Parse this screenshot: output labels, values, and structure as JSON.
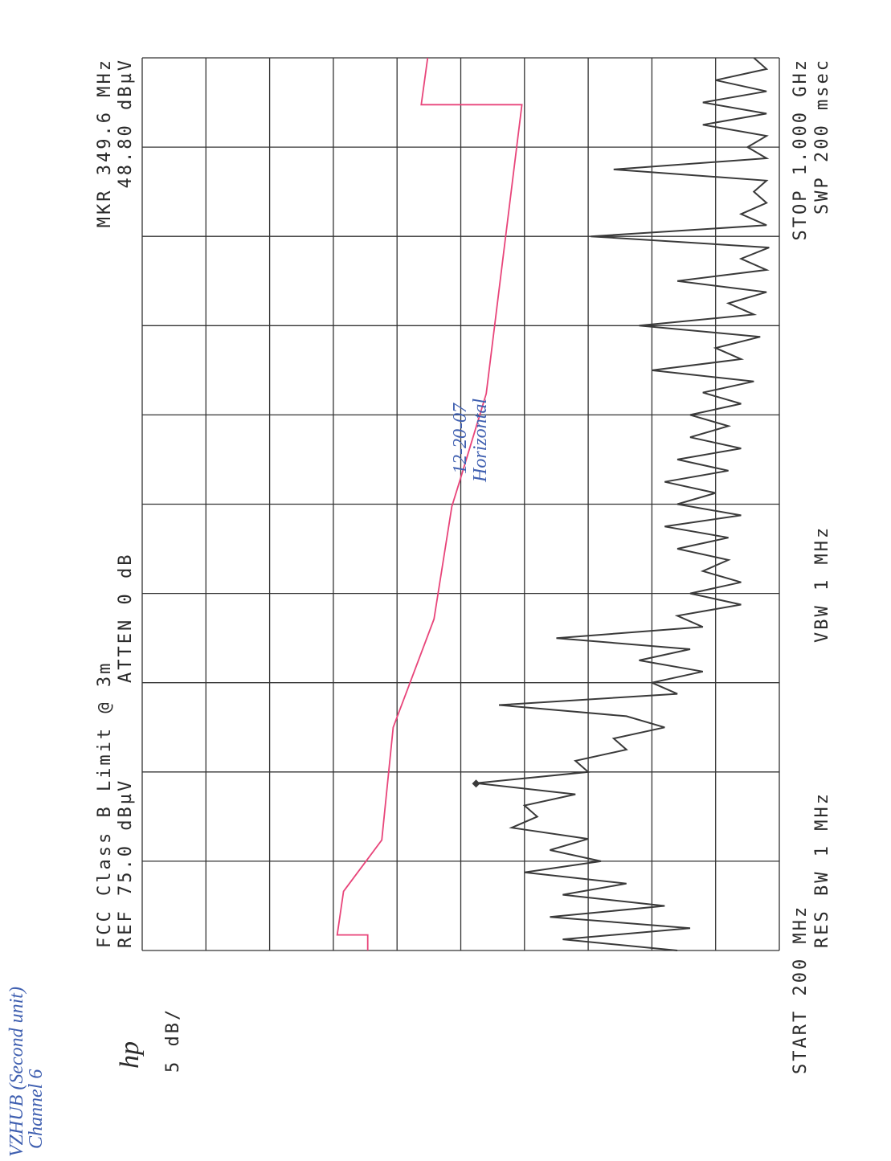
{
  "chart_data": {
    "type": "line",
    "title": "FCC Class B Limit @ 3m",
    "reference": "REF 75.0 dBµV",
    "attenuation": "ATTEN 0 dB",
    "scale": "5 dB/",
    "logo": "hp",
    "marker_label": "MKR 349.6 MHz",
    "marker_value_label": "48.80 dBµV",
    "marker": {
      "x": 349.6,
      "y": 48.8
    },
    "start_label": "START 200 MHz",
    "stop_label": "STOP 1.000 GHz",
    "rbw": "RES BW 1 MHz",
    "vbw": "VBW 1 MHz",
    "sweep": "SWP 200 msec",
    "handwritten": [
      "VZHUB (Second unit)",
      "Channel 6",
      "12-20-07",
      "Horizontal"
    ],
    "xlim": [
      200,
      1000
    ],
    "ylim": [
      25,
      75
    ],
    "xticks": [
      200,
      280,
      360,
      440,
      520,
      600,
      680,
      760,
      840,
      920,
      1000
    ],
    "yticks": [
      25,
      30,
      35,
      40,
      45,
      50,
      55,
      60,
      65,
      70,
      75
    ],
    "grid": true,
    "series": [
      {
        "color": "#3a3a3a",
        "x": [
          200,
          210,
          220,
          230,
          240,
          250,
          260,
          270,
          280,
          290,
          300,
          310,
          320,
          330,
          340,
          350,
          360,
          370,
          380,
          390,
          400,
          410,
          420,
          430,
          440,
          450,
          460,
          470,
          480,
          490,
          500,
          510,
          520,
          530,
          540,
          550,
          560,
          570,
          580,
          590,
          600,
          610,
          620,
          630,
          640,
          650,
          660,
          670,
          680,
          690,
          700,
          710,
          720,
          730,
          740,
          750,
          760,
          770,
          780,
          790,
          800,
          810,
          820,
          830,
          840,
          850,
          860,
          870,
          880,
          890,
          900,
          910,
          920,
          930,
          940,
          950,
          960,
          970,
          980,
          990,
          1000
        ],
        "values": [
          33,
          42,
          32,
          43,
          34,
          42,
          37,
          45,
          39,
          43,
          40,
          46,
          44,
          45,
          41,
          48.8,
          40,
          41,
          37,
          38,
          34,
          37,
          47,
          33,
          35,
          31,
          36,
          32,
          42.5,
          31,
          33,
          28,
          32,
          28,
          31,
          29,
          33,
          29,
          34,
          28,
          33,
          30,
          34,
          29,
          33,
          28,
          32,
          29,
          32,
          28,
          31,
          27,
          35,
          28,
          30,
          26.5,
          36,
          27,
          29,
          26,
          33,
          26,
          28,
          25.8,
          39.8,
          26,
          28,
          26,
          27,
          26,
          38,
          26,
          27.5,
          26,
          31,
          26,
          31,
          26,
          30,
          26,
          27
        ]
      },
      {
        "color": "#e8457a",
        "x": [
          200,
          214,
          214,
          253,
          299,
          400,
          497,
          598,
          620,
          699,
          958,
          958,
          1000
        ],
        "values": [
          57.3,
          57.3,
          59.7,
          59.2,
          56.2,
          55.3,
          52.1,
          50.7,
          50.1,
          48.0,
          45.2,
          53.1,
          52.6
        ]
      }
    ]
  }
}
